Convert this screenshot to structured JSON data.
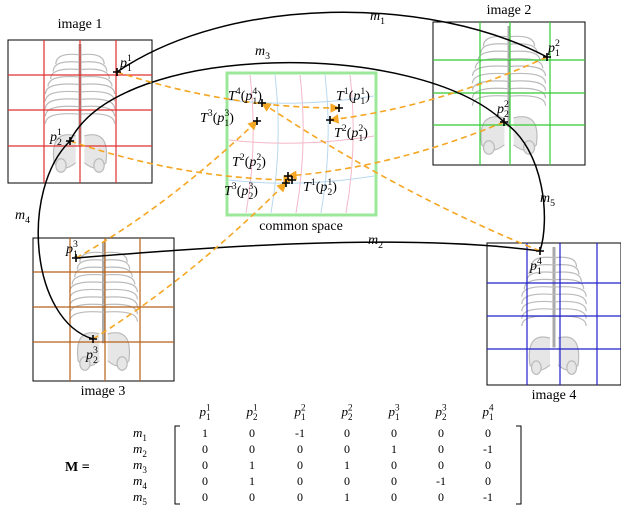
{
  "images": [
    {
      "label": "image 1"
    },
    {
      "label": "image 2"
    },
    {
      "label": "image 3"
    },
    {
      "label": "image 4"
    }
  ],
  "common_space": {
    "label": "common space"
  },
  "matches": [
    [
      [
        "m",
        ""
      ],
      [
        "1",
        "_"
      ]
    ],
    [
      [
        "m",
        ""
      ],
      [
        "2",
        "_"
      ]
    ],
    [
      [
        "m",
        ""
      ],
      [
        "3",
        "_"
      ]
    ],
    [
      [
        "m",
        ""
      ],
      [
        "4",
        "_"
      ]
    ],
    [
      [
        "m",
        ""
      ],
      [
        "5",
        "_"
      ]
    ]
  ],
  "points": [
    [
      [
        "p",
        ""
      ],
      [
        "1",
        "^"
      ],
      [
        "1",
        "_"
      ]
    ],
    [
      [
        "p",
        ""
      ],
      [
        "1",
        "^"
      ],
      [
        "2",
        "_"
      ]
    ],
    [
      [
        "p",
        ""
      ],
      [
        "2",
        "^"
      ],
      [
        "1",
        "_"
      ]
    ],
    [
      [
        "p",
        ""
      ],
      [
        "2",
        "^"
      ],
      [
        "2",
        "_"
      ]
    ],
    [
      [
        "p",
        ""
      ],
      [
        "3",
        "^"
      ],
      [
        "1",
        "_"
      ]
    ],
    [
      [
        "p",
        ""
      ],
      [
        "3",
        "^"
      ],
      [
        "2",
        "_"
      ]
    ],
    [
      [
        "p",
        ""
      ],
      [
        "4",
        "^"
      ],
      [
        "1",
        "_"
      ]
    ]
  ],
  "transformed": [
    [
      [
        "T",
        ""
      ],
      [
        "4",
        "^"
      ],
      [
        "(",
        ""
      ],
      [
        "p",
        ""
      ],
      [
        "4",
        "^"
      ],
      [
        "1",
        "_"
      ],
      [
        ")",
        ""
      ]
    ],
    [
      [
        "T",
        ""
      ],
      [
        "3",
        "^"
      ],
      [
        "(",
        ""
      ],
      [
        "p",
        ""
      ],
      [
        "3",
        "^"
      ],
      [
        "1",
        "_"
      ],
      [
        ")",
        ""
      ]
    ],
    [
      [
        "T",
        ""
      ],
      [
        "1",
        "^"
      ],
      [
        "(",
        ""
      ],
      [
        "p",
        ""
      ],
      [
        "1",
        "^"
      ],
      [
        "1",
        "_"
      ],
      [
        ")",
        ""
      ]
    ],
    [
      [
        "T",
        ""
      ],
      [
        "2",
        "^"
      ],
      [
        "(",
        ""
      ],
      [
        "p",
        ""
      ],
      [
        "2",
        "^"
      ],
      [
        "1",
        "_"
      ],
      [
        ")",
        ""
      ]
    ],
    [
      [
        "T",
        ""
      ],
      [
        "2",
        "^"
      ],
      [
        "(",
        ""
      ],
      [
        "p",
        ""
      ],
      [
        "2",
        "^"
      ],
      [
        "2",
        "_"
      ],
      [
        ")",
        ""
      ]
    ],
    [
      [
        "T",
        ""
      ],
      [
        "3",
        "^"
      ],
      [
        "(",
        ""
      ],
      [
        "p",
        ""
      ],
      [
        "3",
        "^"
      ],
      [
        "2",
        "_"
      ],
      [
        ")",
        ""
      ]
    ],
    [
      [
        "T",
        ""
      ],
      [
        "1",
        "^"
      ],
      [
        "(",
        ""
      ],
      [
        "p",
        ""
      ],
      [
        "1",
        "^"
      ],
      [
        "2",
        "_"
      ],
      [
        ")",
        ""
      ]
    ]
  ],
  "matrix": {
    "name": "M =",
    "rows": [
      [
        1,
        0,
        -1,
        0,
        0,
        0,
        0
      ],
      [
        0,
        0,
        0,
        0,
        1,
        0,
        -1
      ],
      [
        0,
        1,
        0,
        1,
        0,
        0,
        0
      ],
      [
        0,
        1,
        0,
        0,
        0,
        -1,
        0
      ],
      [
        0,
        0,
        0,
        1,
        0,
        0,
        -1
      ]
    ]
  }
}
